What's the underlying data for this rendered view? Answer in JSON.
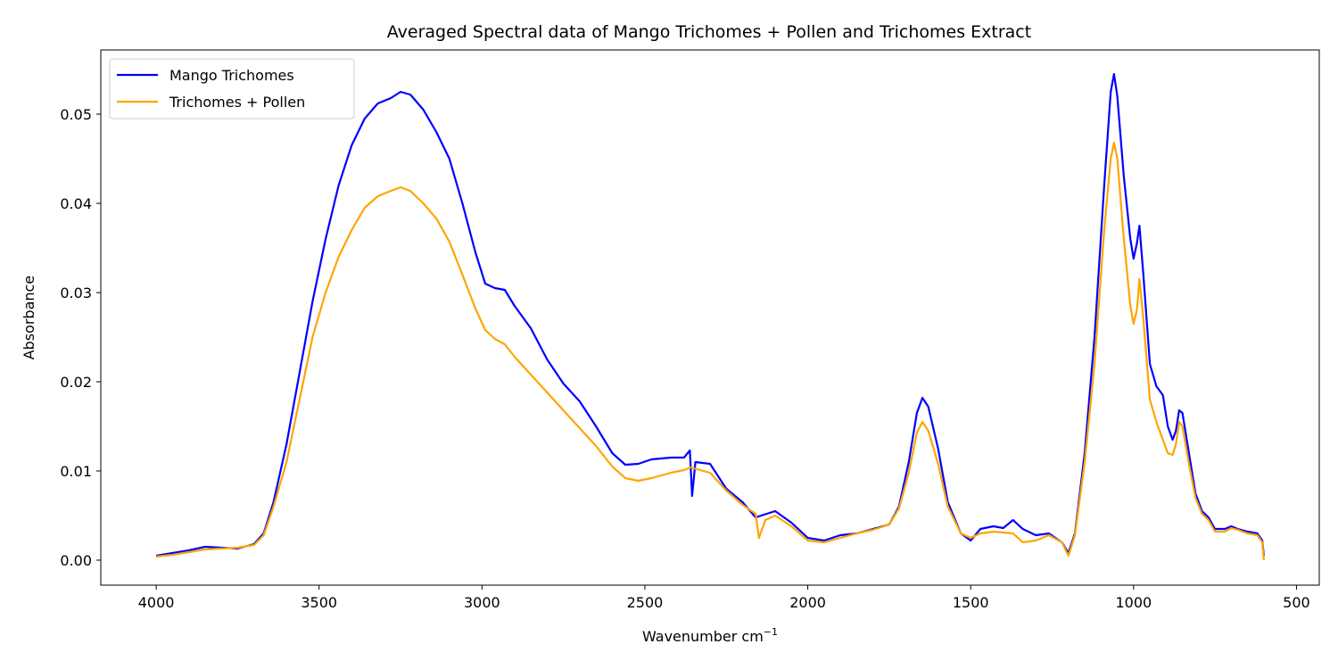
{
  "chart_data": {
    "type": "line",
    "title": "Averaged Spectral data of Mango Trichomes + Pollen and Trichomes Extract",
    "xlabel": "Wavenumber cm",
    "xlabel_superscript": "−1",
    "ylabel": "Absorbance",
    "xlim": [
      4170,
      430
    ],
    "ylim": [
      -0.0028,
      0.0572
    ],
    "x_reversed": true,
    "grid": false,
    "legend_position": "upper-left",
    "x_ticks": [
      {
        "value": 4000,
        "label": "4000"
      },
      {
        "value": 3500,
        "label": "3500"
      },
      {
        "value": 3000,
        "label": "3000"
      },
      {
        "value": 2500,
        "label": "2500"
      },
      {
        "value": 2000,
        "label": "2000"
      },
      {
        "value": 1500,
        "label": "1500"
      },
      {
        "value": 1000,
        "label": "1000"
      },
      {
        "value": 500,
        "label": "500"
      }
    ],
    "y_ticks": [
      {
        "value": 0.0,
        "label": "0.00"
      },
      {
        "value": 0.01,
        "label": "0.01"
      },
      {
        "value": 0.02,
        "label": "0.02"
      },
      {
        "value": 0.03,
        "label": "0.03"
      },
      {
        "value": 0.04,
        "label": "0.04"
      },
      {
        "value": 0.05,
        "label": "0.05"
      }
    ],
    "series": [
      {
        "name": "Mango Trichomes",
        "color": "#0000ff",
        "points": [
          [
            4000,
            0.0005
          ],
          [
            3950,
            0.0008
          ],
          [
            3900,
            0.0011
          ],
          [
            3850,
            0.0015
          ],
          [
            3800,
            0.0014
          ],
          [
            3750,
            0.0013
          ],
          [
            3700,
            0.0018
          ],
          [
            3670,
            0.003
          ],
          [
            3640,
            0.0065
          ],
          [
            3600,
            0.013
          ],
          [
            3560,
            0.021
          ],
          [
            3520,
            0.029
          ],
          [
            3480,
            0.036
          ],
          [
            3440,
            0.042
          ],
          [
            3400,
            0.0465
          ],
          [
            3360,
            0.0495
          ],
          [
            3320,
            0.0512
          ],
          [
            3280,
            0.0518
          ],
          [
            3250,
            0.0525
          ],
          [
            3220,
            0.0522
          ],
          [
            3180,
            0.0505
          ],
          [
            3140,
            0.048
          ],
          [
            3100,
            0.045
          ],
          [
            3060,
            0.04
          ],
          [
            3020,
            0.0345
          ],
          [
            2990,
            0.031
          ],
          [
            2960,
            0.0305
          ],
          [
            2930,
            0.0303
          ],
          [
            2900,
            0.0285
          ],
          [
            2850,
            0.026
          ],
          [
            2800,
            0.0225
          ],
          [
            2750,
            0.0198
          ],
          [
            2700,
            0.0178
          ],
          [
            2650,
            0.015
          ],
          [
            2600,
            0.012
          ],
          [
            2560,
            0.0107
          ],
          [
            2520,
            0.0108
          ],
          [
            2480,
            0.0113
          ],
          [
            2420,
            0.0115
          ],
          [
            2380,
            0.0115
          ],
          [
            2362,
            0.0123
          ],
          [
            2355,
            0.0072
          ],
          [
            2345,
            0.011
          ],
          [
            2300,
            0.0108
          ],
          [
            2250,
            0.008
          ],
          [
            2200,
            0.0065
          ],
          [
            2160,
            0.0048
          ],
          [
            2100,
            0.0055
          ],
          [
            2050,
            0.0042
          ],
          [
            2000,
            0.0025
          ],
          [
            1950,
            0.0022
          ],
          [
            1900,
            0.0028
          ],
          [
            1850,
            0.003
          ],
          [
            1800,
            0.0035
          ],
          [
            1750,
            0.004
          ],
          [
            1720,
            0.006
          ],
          [
            1690,
            0.011
          ],
          [
            1665,
            0.0165
          ],
          [
            1648,
            0.0182
          ],
          [
            1630,
            0.0172
          ],
          [
            1600,
            0.0125
          ],
          [
            1570,
            0.0065
          ],
          [
            1530,
            0.003
          ],
          [
            1500,
            0.0022
          ],
          [
            1470,
            0.0035
          ],
          [
            1430,
            0.0038
          ],
          [
            1400,
            0.0036
          ],
          [
            1370,
            0.0045
          ],
          [
            1340,
            0.0035
          ],
          [
            1300,
            0.0028
          ],
          [
            1260,
            0.003
          ],
          [
            1220,
            0.002
          ],
          [
            1200,
            0.0008
          ],
          [
            1180,
            0.003
          ],
          [
            1150,
            0.012
          ],
          [
            1120,
            0.025
          ],
          [
            1090,
            0.042
          ],
          [
            1070,
            0.0525
          ],
          [
            1060,
            0.0545
          ],
          [
            1050,
            0.052
          ],
          [
            1030,
            0.043
          ],
          [
            1010,
            0.036
          ],
          [
            1000,
            0.0338
          ],
          [
            990,
            0.0355
          ],
          [
            982,
            0.0375
          ],
          [
            970,
            0.032
          ],
          [
            950,
            0.022
          ],
          [
            930,
            0.0195
          ],
          [
            910,
            0.0185
          ],
          [
            895,
            0.015
          ],
          [
            880,
            0.0135
          ],
          [
            870,
            0.0145
          ],
          [
            860,
            0.0168
          ],
          [
            850,
            0.0165
          ],
          [
            830,
            0.012
          ],
          [
            810,
            0.0075
          ],
          [
            790,
            0.0055
          ],
          [
            770,
            0.0048
          ],
          [
            750,
            0.0035
          ],
          [
            720,
            0.0035
          ],
          [
            700,
            0.0038
          ],
          [
            680,
            0.0035
          ],
          [
            650,
            0.0032
          ],
          [
            620,
            0.003
          ],
          [
            605,
            0.0022
          ],
          [
            600,
            0.0005
          ]
        ]
      },
      {
        "name": "Trichomes + Pollen",
        "color": "#ffa500",
        "points": [
          [
            4000,
            0.0004
          ],
          [
            3950,
            0.0006
          ],
          [
            3900,
            0.0009
          ],
          [
            3850,
            0.0012
          ],
          [
            3800,
            0.0013
          ],
          [
            3750,
            0.0014
          ],
          [
            3700,
            0.0017
          ],
          [
            3670,
            0.0028
          ],
          [
            3640,
            0.006
          ],
          [
            3600,
            0.011
          ],
          [
            3560,
            0.018
          ],
          [
            3520,
            0.025
          ],
          [
            3480,
            0.03
          ],
          [
            3440,
            0.034
          ],
          [
            3400,
            0.037
          ],
          [
            3360,
            0.0395
          ],
          [
            3320,
            0.0408
          ],
          [
            3280,
            0.0414
          ],
          [
            3250,
            0.0418
          ],
          [
            3220,
            0.0414
          ],
          [
            3180,
            0.04
          ],
          [
            3140,
            0.0383
          ],
          [
            3100,
            0.0357
          ],
          [
            3060,
            0.032
          ],
          [
            3020,
            0.0282
          ],
          [
            2990,
            0.0258
          ],
          [
            2960,
            0.0248
          ],
          [
            2930,
            0.0242
          ],
          [
            2900,
            0.0228
          ],
          [
            2850,
            0.0208
          ],
          [
            2800,
            0.0188
          ],
          [
            2750,
            0.0168
          ],
          [
            2700,
            0.0148
          ],
          [
            2650,
            0.0128
          ],
          [
            2600,
            0.0105
          ],
          [
            2560,
            0.0092
          ],
          [
            2520,
            0.0089
          ],
          [
            2480,
            0.0092
          ],
          [
            2420,
            0.0098
          ],
          [
            2380,
            0.0101
          ],
          [
            2360,
            0.0104
          ],
          [
            2340,
            0.0102
          ],
          [
            2300,
            0.0098
          ],
          [
            2250,
            0.0078
          ],
          [
            2200,
            0.0062
          ],
          [
            2160,
            0.0052
          ],
          [
            2150,
            0.0025
          ],
          [
            2130,
            0.0045
          ],
          [
            2100,
            0.005
          ],
          [
            2050,
            0.0038
          ],
          [
            2000,
            0.0022
          ],
          [
            1950,
            0.002
          ],
          [
            1900,
            0.0025
          ],
          [
            1850,
            0.003
          ],
          [
            1800,
            0.0034
          ],
          [
            1750,
            0.004
          ],
          [
            1720,
            0.0058
          ],
          [
            1690,
            0.0098
          ],
          [
            1665,
            0.0143
          ],
          [
            1648,
            0.0155
          ],
          [
            1630,
            0.0145
          ],
          [
            1600,
            0.0108
          ],
          [
            1570,
            0.006
          ],
          [
            1530,
            0.003
          ],
          [
            1500,
            0.0025
          ],
          [
            1470,
            0.003
          ],
          [
            1430,
            0.0032
          ],
          [
            1400,
            0.0031
          ],
          [
            1370,
            0.003
          ],
          [
            1340,
            0.002
          ],
          [
            1300,
            0.0022
          ],
          [
            1260,
            0.0028
          ],
          [
            1220,
            0.002
          ],
          [
            1200,
            0.0005
          ],
          [
            1180,
            0.0028
          ],
          [
            1150,
            0.011
          ],
          [
            1120,
            0.022
          ],
          [
            1090,
            0.037
          ],
          [
            1070,
            0.045
          ],
          [
            1060,
            0.0468
          ],
          [
            1050,
            0.045
          ],
          [
            1030,
            0.036
          ],
          [
            1010,
            0.0285
          ],
          [
            1000,
            0.0265
          ],
          [
            990,
            0.028
          ],
          [
            982,
            0.0315
          ],
          [
            970,
            0.027
          ],
          [
            950,
            0.018
          ],
          [
            930,
            0.0155
          ],
          [
            910,
            0.0135
          ],
          [
            895,
            0.012
          ],
          [
            880,
            0.0118
          ],
          [
            870,
            0.013
          ],
          [
            860,
            0.0155
          ],
          [
            850,
            0.015
          ],
          [
            830,
            0.0108
          ],
          [
            810,
            0.007
          ],
          [
            790,
            0.0052
          ],
          [
            770,
            0.0045
          ],
          [
            750,
            0.0032
          ],
          [
            720,
            0.0032
          ],
          [
            700,
            0.0036
          ],
          [
            680,
            0.0034
          ],
          [
            650,
            0.003
          ],
          [
            620,
            0.0028
          ],
          [
            605,
            0.002
          ],
          [
            600,
            0.0
          ]
        ]
      }
    ]
  }
}
